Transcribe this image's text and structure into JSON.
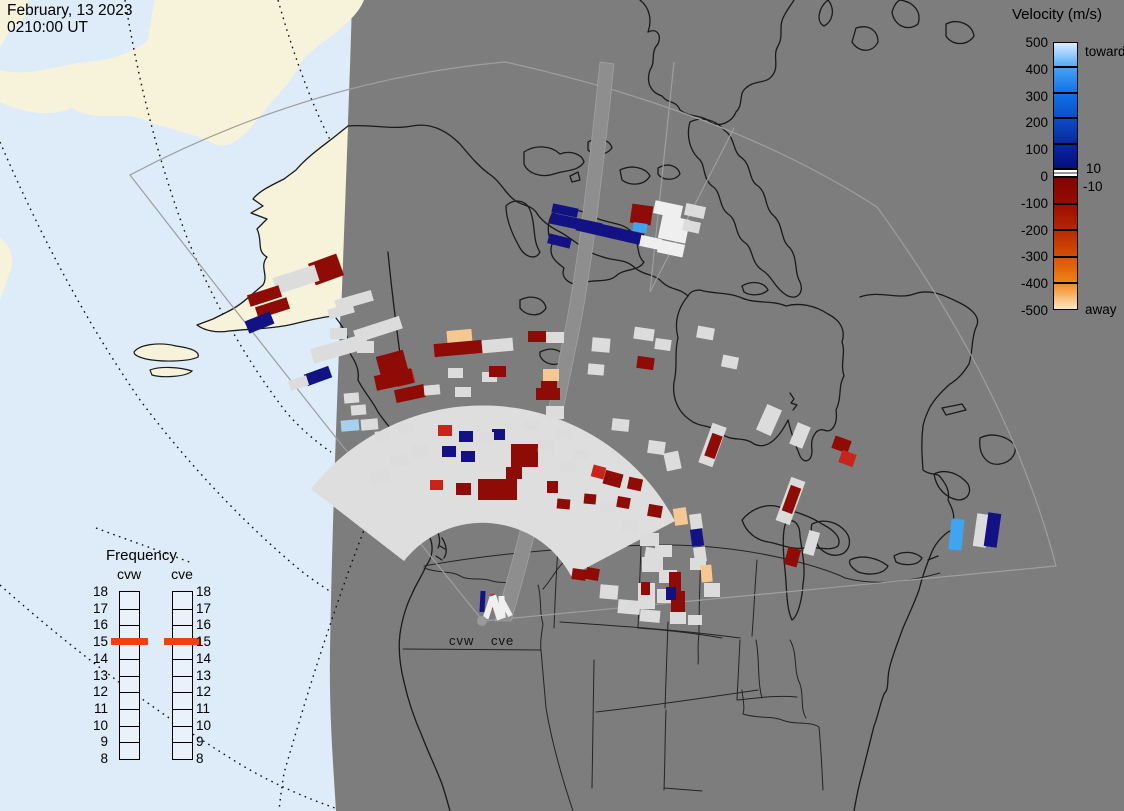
{
  "header": {
    "date_line1": "February, 13 2023",
    "date_line2": "0210:00 UT"
  },
  "velocity_legend": {
    "title": "Velocity (m/s)",
    "toward_label": "toward",
    "away_label": "away",
    "inner_pos_label": "10",
    "inner_neg_label": "-10",
    "ticks": [
      {
        "v": 500,
        "label": "500"
      },
      {
        "v": 400,
        "label": "400"
      },
      {
        "v": 300,
        "label": "300"
      },
      {
        "v": 200,
        "label": "200"
      },
      {
        "v": 100,
        "label": "100"
      },
      {
        "v": 0,
        "label": "0"
      },
      {
        "v": -100,
        "label": "-100"
      },
      {
        "v": -200,
        "label": "-200"
      },
      {
        "v": -300,
        "label": "-300"
      },
      {
        "v": -400,
        "label": "-400"
      },
      {
        "v": -500,
        "label": "-500"
      }
    ],
    "blue_segments": [
      [
        "#d9edff",
        "#57aaf7"
      ],
      [
        "#46a2f5",
        "#1272e8"
      ],
      [
        "#0f70e6",
        "#0c50c8"
      ],
      [
        "#0b4cc4",
        "#0928a2"
      ],
      [
        "#09269e",
        "#050e80"
      ]
    ],
    "red_segments": [
      [
        "#800404",
        "#970b02"
      ],
      [
        "#9b0d02",
        "#b42604"
      ],
      [
        "#b82a04",
        "#d44e04"
      ],
      [
        "#d85408",
        "#f08214"
      ],
      [
        "#f28c20",
        "#ffe6c0"
      ]
    ],
    "zero_band_colors": [
      "#ffffff",
      "#999999",
      "#ffffff"
    ]
  },
  "frequency_legend": {
    "title": "Frequency",
    "columns": [
      "cvw",
      "cve"
    ],
    "ticks": [
      "18",
      "17",
      "16",
      "15",
      "14",
      "13",
      "12",
      "11",
      "10",
      "9",
      "8"
    ],
    "highlight_value": "15",
    "highlight_color": "#f04010"
  },
  "map": {
    "radar_label_west": "cvw",
    "radar_label_east": "cve",
    "colors": {
      "night_bg": "#7d7d7d",
      "day_ocean": "#ddecf8",
      "day_land": "#f7f3da",
      "scatter_gray": "#dedede",
      "coast": "#1a1a1a",
      "fov_line": "#9e9e9e"
    },
    "palette": {
      "gs": "#dcdcdc",
      "wt": "#efefef",
      "dr": "#8e0b06",
      "rd": "#c9241a",
      "pe": "#f7c791",
      "nv": "#131284",
      "cy": "#3fa5f0",
      "lb": "#a6cff0"
    },
    "cells": [
      [
        552,
        206,
        26,
        9,
        "nv",
        12
      ],
      [
        550,
        218,
        52,
        11,
        "nv",
        12
      ],
      [
        576,
        226,
        68,
        12,
        "nv",
        13
      ],
      [
        548,
        236,
        23,
        10,
        "nv",
        14
      ],
      [
        631,
        205,
        21,
        19,
        "dr",
        8
      ],
      [
        633,
        223,
        14,
        9,
        "cy",
        8
      ],
      [
        654,
        203,
        28,
        13,
        "wt",
        12
      ],
      [
        660,
        217,
        28,
        24,
        "wt",
        12
      ],
      [
        640,
        237,
        21,
        11,
        "wt",
        12
      ],
      [
        658,
        242,
        26,
        13,
        "wt",
        12
      ],
      [
        685,
        205,
        20,
        12,
        "gs",
        12
      ],
      [
        683,
        221,
        17,
        11,
        "gs",
        12
      ],
      [
        311,
        258,
        30,
        23,
        "dr",
        -20
      ],
      [
        274,
        271,
        44,
        17,
        "gs",
        -18
      ],
      [
        248,
        290,
        33,
        12,
        "dr",
        -18
      ],
      [
        256,
        302,
        33,
        12,
        "dr",
        -18
      ],
      [
        246,
        316,
        27,
        13,
        "nv",
        -22
      ],
      [
        335,
        295,
        38,
        11,
        "gs",
        -16
      ],
      [
        328,
        306,
        26,
        10,
        "gs",
        -16
      ],
      [
        354,
        323,
        48,
        13,
        "gs",
        -18
      ],
      [
        311,
        341,
        57,
        15,
        "gs",
        -16
      ],
      [
        305,
        370,
        26,
        12,
        "nv",
        -20
      ],
      [
        378,
        353,
        28,
        21,
        "dr",
        -15
      ],
      [
        396,
        371,
        18,
        14,
        "rd",
        -15
      ],
      [
        289,
        378,
        19,
        10,
        "gs",
        -18
      ],
      [
        330,
        328,
        17,
        11,
        "gs",
        0
      ],
      [
        357,
        341,
        17,
        12,
        "gs",
        0
      ],
      [
        447,
        330,
        25,
        14,
        "pe",
        -5
      ],
      [
        434,
        342,
        48,
        13,
        "dr",
        -5
      ],
      [
        482,
        339,
        31,
        13,
        "gs",
        -5
      ],
      [
        528,
        331,
        18,
        11,
        "dr",
        0
      ],
      [
        546,
        332,
        18,
        11,
        "gs",
        0
      ],
      [
        592,
        338,
        18,
        14,
        "gs",
        5
      ],
      [
        634,
        328,
        20,
        12,
        "gs",
        8
      ],
      [
        655,
        339,
        16,
        11,
        "gs",
        8
      ],
      [
        448,
        368,
        15,
        10,
        "gs",
        0
      ],
      [
        482,
        372,
        15,
        10,
        "gs",
        0
      ],
      [
        489,
        366,
        17,
        11,
        "dr",
        0
      ],
      [
        543,
        369,
        16,
        12,
        "pe",
        0
      ],
      [
        541,
        381,
        16,
        12,
        "dr",
        0
      ],
      [
        375,
        372,
        38,
        15,
        "dr",
        -12
      ],
      [
        395,
        387,
        30,
        13,
        "dr",
        -12
      ],
      [
        424,
        385,
        16,
        10,
        "gs",
        -5
      ],
      [
        455,
        387,
        16,
        10,
        "gs",
        0
      ],
      [
        536,
        388,
        24,
        12,
        "dr",
        0
      ],
      [
        546,
        406,
        18,
        13,
        "gs",
        0
      ],
      [
        588,
        364,
        16,
        11,
        "gs",
        5
      ],
      [
        637,
        357,
        17,
        12,
        "dr",
        8
      ],
      [
        697,
        327,
        17,
        12,
        "gs",
        10
      ],
      [
        722,
        356,
        16,
        12,
        "gs",
        12
      ],
      [
        344,
        393,
        15,
        10,
        "gs",
        -5
      ],
      [
        351,
        405,
        15,
        10,
        "gs",
        -5
      ],
      [
        341,
        420,
        18,
        11,
        "lb",
        -5
      ],
      [
        361,
        419,
        17,
        11,
        "gs",
        -5
      ],
      [
        375,
        431,
        16,
        10,
        "gs",
        -5
      ],
      [
        398,
        423,
        15,
        10,
        "gs",
        0
      ],
      [
        438,
        425,
        14,
        11,
        "rd",
        0
      ],
      [
        459,
        431,
        14,
        11,
        "nv",
        0
      ],
      [
        492,
        429,
        13,
        11,
        "nv",
        0
      ],
      [
        523,
        419,
        16,
        11,
        "gs",
        0
      ],
      [
        556,
        428,
        16,
        11,
        "gs",
        3
      ],
      [
        612,
        419,
        17,
        12,
        "gs",
        6
      ],
      [
        648,
        441,
        17,
        13,
        "gs",
        8
      ],
      [
        665,
        452,
        15,
        18,
        "gs",
        -12
      ],
      [
        442,
        446,
        14,
        11,
        "nv",
        0
      ],
      [
        461,
        451,
        14,
        11,
        "nv",
        0
      ],
      [
        430,
        480,
        13,
        10,
        "rd",
        0
      ],
      [
        456,
        483,
        15,
        12,
        "dr",
        0
      ],
      [
        511,
        444,
        27,
        23,
        "dr",
        0
      ],
      [
        506,
        467,
        16,
        12,
        "dr",
        0
      ],
      [
        478,
        479,
        39,
        21,
        "dr",
        0
      ],
      [
        547,
        481,
        11,
        12,
        "dr",
        0
      ],
      [
        572,
        450,
        16,
        11,
        "gs",
        3
      ],
      [
        592,
        466,
        13,
        12,
        "rd",
        15
      ],
      [
        604,
        472,
        18,
        14,
        "dr",
        15
      ],
      [
        628,
        478,
        14,
        12,
        "dr",
        12
      ],
      [
        617,
        497,
        13,
        11,
        "dr",
        10
      ],
      [
        648,
        505,
        14,
        12,
        "dr",
        10
      ],
      [
        557,
        499,
        13,
        10,
        "dr",
        5
      ],
      [
        584,
        494,
        12,
        10,
        "dr",
        5
      ],
      [
        370,
        470,
        20,
        14,
        "gs",
        -20
      ],
      [
        390,
        455,
        18,
        12,
        "gs",
        -15
      ],
      [
        412,
        445,
        16,
        12,
        "gs",
        -8
      ],
      [
        478,
        432,
        16,
        11,
        "gs",
        0
      ],
      [
        538,
        440,
        16,
        12,
        "gs",
        3
      ],
      [
        560,
        460,
        16,
        12,
        "gs",
        5
      ],
      [
        600,
        500,
        16,
        12,
        "gs",
        8
      ],
      [
        622,
        520,
        16,
        12,
        "gs",
        10
      ],
      [
        645,
        548,
        16,
        12,
        "gs",
        10
      ],
      [
        600,
        585,
        18,
        14,
        "gs",
        5
      ],
      [
        618,
        600,
        22,
        14,
        "gs",
        5
      ],
      [
        640,
        610,
        20,
        12,
        "gs",
        5
      ],
      [
        572,
        569,
        14,
        11,
        "dr",
        8
      ],
      [
        586,
        568,
        13,
        12,
        "dr",
        10
      ],
      [
        674,
        508,
        13,
        17,
        "pe",
        -8
      ],
      [
        690,
        514,
        12,
        15,
        "gs",
        -8
      ],
      [
        691,
        529,
        12,
        17,
        "nv",
        -8
      ],
      [
        694,
        547,
        12,
        15,
        "gs",
        -8
      ],
      [
        640,
        533,
        19,
        13,
        "gs",
        0
      ],
      [
        655,
        545,
        17,
        12,
        "gs",
        0
      ],
      [
        642,
        557,
        21,
        15,
        "gs",
        0
      ],
      [
        659,
        570,
        18,
        13,
        "gs",
        0
      ],
      [
        638,
        583,
        17,
        26,
        "gs",
        0
      ],
      [
        657,
        589,
        16,
        14,
        "gs",
        0
      ],
      [
        690,
        558,
        16,
        12,
        "gs",
        0
      ],
      [
        704,
        583,
        16,
        14,
        "gs",
        0
      ],
      [
        670,
        612,
        16,
        12,
        "gs",
        0
      ],
      [
        688,
        615,
        14,
        10,
        "gs",
        0
      ],
      [
        669,
        572,
        12,
        19,
        "dr",
        0
      ],
      [
        671,
        591,
        14,
        21,
        "dr",
        0
      ],
      [
        666,
        587,
        10,
        13,
        "nv",
        0
      ],
      [
        641,
        582,
        9,
        13,
        "dr",
        0
      ],
      [
        701,
        565,
        11,
        17,
        "pe",
        -5
      ],
      [
        783,
        478,
        15,
        46,
        "gs",
        20
      ],
      [
        786,
        486,
        11,
        27,
        "dr",
        20
      ],
      [
        705,
        424,
        15,
        42,
        "gs",
        20
      ],
      [
        708,
        434,
        11,
        24,
        "dr",
        20
      ],
      [
        761,
        406,
        16,
        28,
        "gs",
        24
      ],
      [
        793,
        424,
        14,
        23,
        "gs",
        22
      ],
      [
        806,
        531,
        11,
        24,
        "gs",
        16
      ],
      [
        833,
        438,
        17,
        13,
        "dr",
        20
      ],
      [
        840,
        452,
        15,
        13,
        "rd",
        20
      ],
      [
        786,
        548,
        13,
        18,
        "dr",
        15
      ],
      [
        950,
        519,
        13,
        31,
        "cy",
        6
      ],
      [
        975,
        514,
        13,
        33,
        "gs",
        8
      ],
      [
        986,
        513,
        13,
        34,
        "nv",
        8
      ],
      [
        480,
        591,
        5,
        21,
        "nv",
        3
      ],
      [
        491,
        594,
        5,
        15,
        "rd",
        -5
      ],
      [
        486,
        597,
        6,
        22,
        "wt",
        18
      ],
      [
        493,
        595,
        7,
        25,
        "wt",
        -18
      ],
      [
        499,
        596,
        6,
        22,
        "wt",
        -3
      ],
      [
        504,
        600,
        5,
        17,
        "wt",
        -28
      ]
    ]
  }
}
